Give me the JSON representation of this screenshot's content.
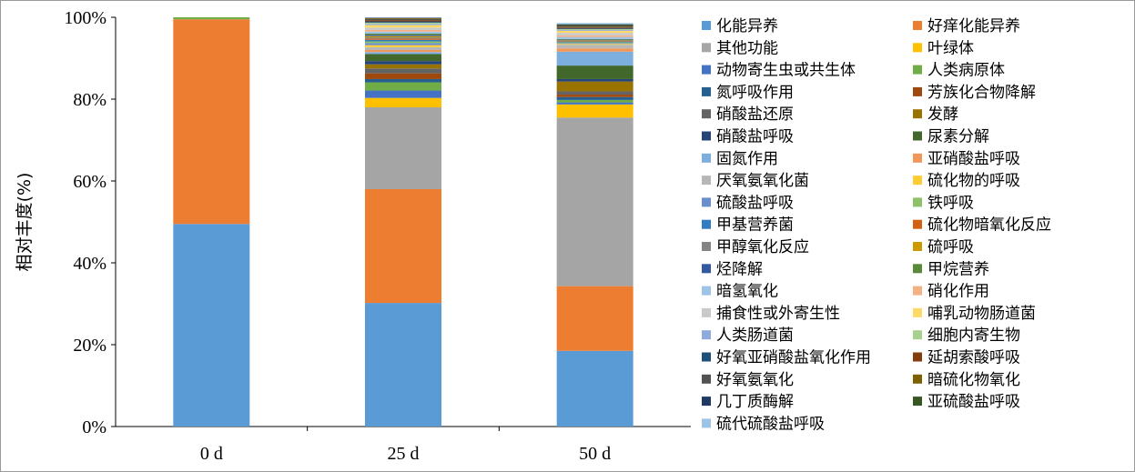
{
  "chart_data": {
    "type": "bar",
    "stacked": true,
    "categories": [
      "0 d",
      "25 d",
      "50 d"
    ],
    "ylabel": "相对丰度(%)",
    "ylim": [
      0,
      100
    ],
    "yticks": [
      "0%",
      "20%",
      "40%",
      "60%",
      "80%",
      "100%"
    ],
    "legend_position": "right",
    "series": [
      {
        "name": "化能异养",
        "color": "#5B9BD5",
        "values": [
          49.5,
          30.2,
          18.5
        ]
      },
      {
        "name": "好痒化能异养",
        "color": "#ED7D31",
        "values": [
          50.0,
          27.8,
          15.8
        ]
      },
      {
        "name": "其他功能",
        "color": "#A5A5A5",
        "values": [
          0.0,
          20.0,
          41.2
        ]
      },
      {
        "name": "叶绿体",
        "color": "#FFC000",
        "values": [
          0.0,
          2.3,
          3.2
        ]
      },
      {
        "name": "动物寄生虫或共生体",
        "color": "#4472C4",
        "values": [
          0.0,
          1.8,
          0.5
        ]
      },
      {
        "name": "人类病原体",
        "color": "#70AD47",
        "values": [
          0.5,
          2.0,
          0.6
        ]
      },
      {
        "name": "氮呼吸作用",
        "color": "#255E91",
        "values": [
          0.0,
          0.8,
          0.7
        ]
      },
      {
        "name": "芳族化合物降解",
        "color": "#9E480E",
        "values": [
          0.0,
          1.4,
          0.6
        ]
      },
      {
        "name": "硝酸盐还原",
        "color": "#636363",
        "values": [
          0.0,
          1.2,
          0.8
        ]
      },
      {
        "name": "发酵",
        "color": "#997300",
        "values": [
          0.0,
          1.0,
          2.4
        ]
      },
      {
        "name": "硝酸盐呼吸",
        "color": "#264478",
        "values": [
          0.0,
          0.8,
          0.6
        ]
      },
      {
        "name": "尿素分解",
        "color": "#43682B",
        "values": [
          0.0,
          1.7,
          3.3
        ]
      },
      {
        "name": "固氮作用",
        "color": "#7CAFDD",
        "values": [
          0.0,
          0.5,
          3.4
        ]
      },
      {
        "name": "亚硝酸盐呼吸",
        "color": "#F1975A",
        "values": [
          0.0,
          0.5,
          0.8
        ]
      },
      {
        "name": "厌氧氨氧化菌",
        "color": "#B7B7B7",
        "values": [
          0.0,
          0.7,
          0.9
        ]
      },
      {
        "name": "硫化物的呼吸",
        "color": "#FFCD33",
        "values": [
          0.0,
          0.5,
          0.2
        ]
      },
      {
        "name": "硫酸盐呼吸",
        "color": "#698ED0",
        "values": [
          0.0,
          0.5,
          0.2
        ]
      },
      {
        "name": "铁呼吸",
        "color": "#8CC168",
        "values": [
          0.0,
          0.4,
          0.2
        ]
      },
      {
        "name": "甲基营养菌",
        "color": "#327DC2",
        "values": [
          0.0,
          0.4,
          0.2
        ]
      },
      {
        "name": "硫化物暗氧化反应",
        "color": "#D26012",
        "values": [
          0.0,
          0.3,
          0.1
        ]
      },
      {
        "name": "甲醇氧化反应",
        "color": "#848484",
        "values": [
          0.0,
          0.3,
          0.2
        ]
      },
      {
        "name": "硫呼吸",
        "color": "#CC9A00",
        "values": [
          0.0,
          0.3,
          0.1
        ]
      },
      {
        "name": "烃降解",
        "color": "#335AA1",
        "values": [
          0.0,
          0.3,
          0.1
        ]
      },
      {
        "name": "甲烷营养",
        "color": "#5A8A39",
        "values": [
          0.0,
          0.3,
          0.1
        ]
      },
      {
        "name": "暗氢氧化",
        "color": "#9DC3E6",
        "values": [
          0.0,
          0.5,
          0.5
        ]
      },
      {
        "name": "硝化作用",
        "color": "#F4B183",
        "values": [
          0.0,
          0.4,
          0.4
        ]
      },
      {
        "name": "捕食性或外寄生性",
        "color": "#C9C9C9",
        "values": [
          0.0,
          0.6,
          0.6
        ]
      },
      {
        "name": "哺乳动物肠道菌",
        "color": "#FFD966",
        "values": [
          0.0,
          0.6,
          0.5
        ]
      },
      {
        "name": "人类肠道菌",
        "color": "#8FAADC",
        "values": [
          0.0,
          0.3,
          0.2
        ]
      },
      {
        "name": "细胞内寄生物",
        "color": "#A9D18E",
        "values": [
          0.0,
          0.3,
          0.2
        ]
      },
      {
        "name": "好氧亚硝酸盐氧化作用",
        "color": "#1F4E79",
        "values": [
          0.0,
          0.3,
          0.2
        ]
      },
      {
        "name": "延胡索酸呼吸",
        "color": "#843C0C",
        "values": [
          0.0,
          0.3,
          0.2
        ]
      },
      {
        "name": "好氧氨氧化",
        "color": "#525252",
        "values": [
          0.0,
          0.3,
          0.2
        ]
      },
      {
        "name": "暗硫化物氧化",
        "color": "#7F6000",
        "values": [
          0.0,
          0.2,
          0.2
        ]
      },
      {
        "name": "几丁质酶解",
        "color": "#203864",
        "values": [
          0.0,
          0.3,
          0.2
        ]
      },
      {
        "name": "亚硫酸盐呼吸",
        "color": "#375623",
        "values": [
          0.0,
          0.2,
          0.2
        ]
      },
      {
        "name": "硫代硫酸盐呼吸",
        "color": "#9DC3E6",
        "values": [
          0.0,
          0.2,
          0.3
        ]
      }
    ]
  }
}
